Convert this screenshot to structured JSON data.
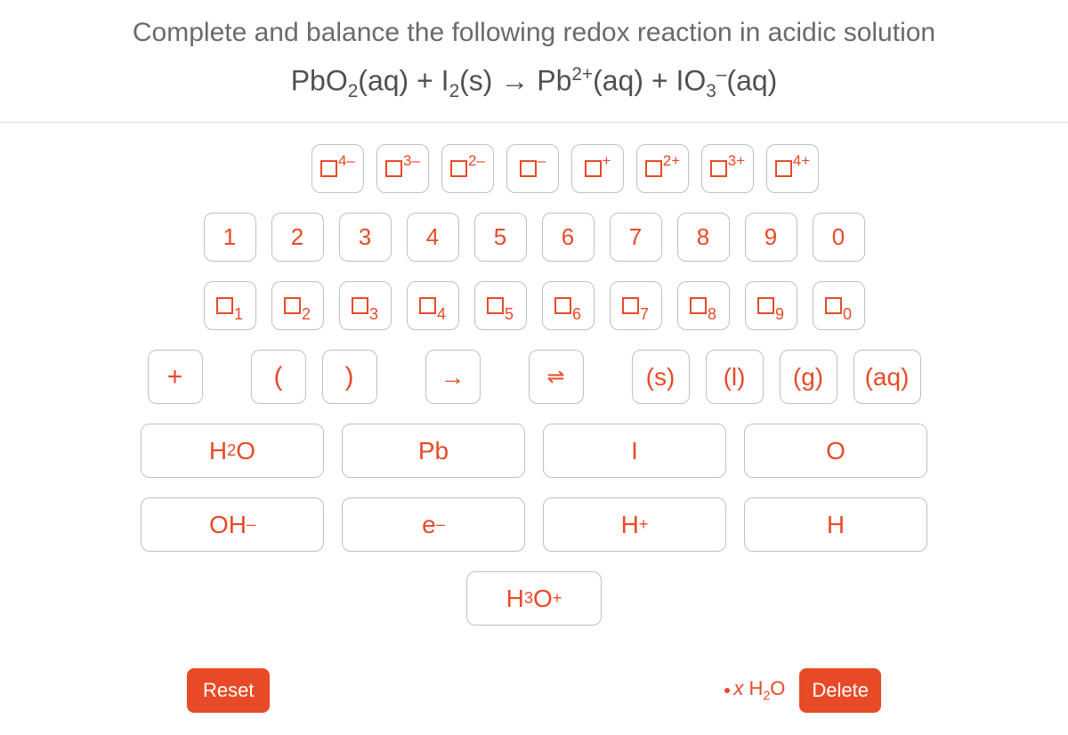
{
  "question": "Complete and balance the following redox reaction in acidic solution",
  "equation_html": "PbO<sub>2</sub>(aq) + I<sub>2</sub>(s) → Pb<sup>2+</sup>(aq) + IO<sub>3</sub><sup>–</sup>(aq)",
  "charges": [
    "4–",
    "3–",
    "2–",
    "–",
    "+",
    "2+",
    "3+",
    "4+"
  ],
  "digits": [
    "1",
    "2",
    "3",
    "4",
    "5",
    "6",
    "7",
    "8",
    "9",
    "0"
  ],
  "subs": [
    "1",
    "2",
    "3",
    "4",
    "5",
    "6",
    "7",
    "8",
    "9",
    "0"
  ],
  "symbols": {
    "plus": "+",
    "lparen": "(",
    "rparen": ")",
    "arrow": "→",
    "equil": "⇌"
  },
  "states": {
    "s": "(s)",
    "l": "(l)",
    "g": "(g)",
    "aq": "(aq)"
  },
  "chem_row1": {
    "h2o": "H<sub class='chem'>2</sub>O",
    "pb": "Pb",
    "iodine": "I",
    "oxygen": "O"
  },
  "chem_row2": {
    "ohminus": "OH<sup class='chem'>–</sup>",
    "eminus": "e<sup class='chem'>–</sup>",
    "hplus": "H<sup class='chem'>+</sup>",
    "hydrogen": "H"
  },
  "chem_row3": {
    "h3oplus": "H<sub class='chem'>3</sub>O<sup class='chem'>+</sup>"
  },
  "footer": {
    "reset": "Reset",
    "hint": "<i>x</i> H<sub class='chem'>2</sub>O",
    "delete": "Delete"
  },
  "colors": {
    "accent": "#e84a27",
    "text_gray": "#6a6a6a",
    "border": "#c0c0c0"
  }
}
